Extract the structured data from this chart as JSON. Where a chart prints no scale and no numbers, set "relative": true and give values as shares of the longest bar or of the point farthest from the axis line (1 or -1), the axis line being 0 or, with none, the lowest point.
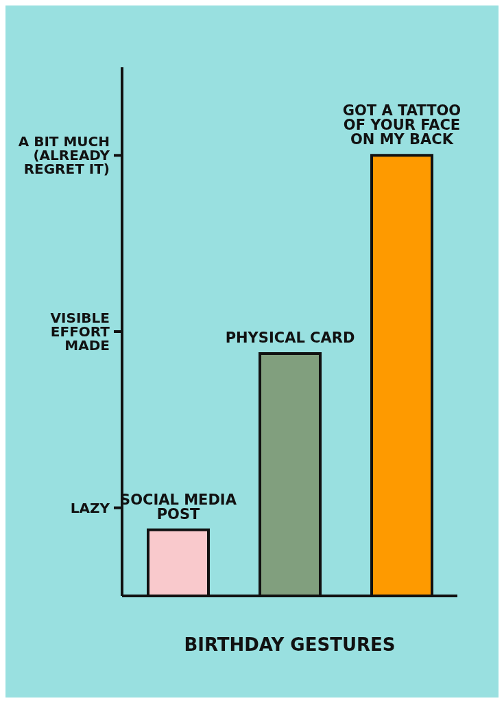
{
  "chart_data": {
    "type": "bar",
    "relative": true,
    "xlabel": "BIRTHDAY GESTURES",
    "categories": [
      "SOCIAL MEDIA POST",
      "PHYSICAL CARD",
      "GOT A TATTOO OF YOUR FACE ON MY BACK"
    ],
    "values": [
      0.15,
      0.55,
      1
    ],
    "colors": [
      "#f9c9cc",
      "#819f7e",
      "#fe9a00"
    ],
    "annotations": [
      "LAZY",
      "VISIBLE EFFORT MADE",
      "A BIT MUCH (ALREADY REGRET IT)"
    ],
    "grid": false,
    "legend": false
  }
}
